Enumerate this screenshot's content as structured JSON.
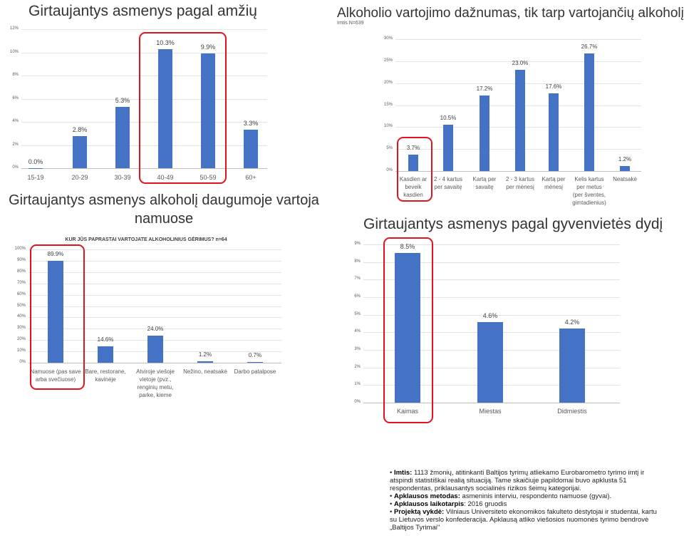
{
  "chart_data": [
    {
      "type": "bar",
      "title": "Girtaujantys asmenys pagal amžių",
      "categories": [
        "15-19",
        "20-29",
        "30-39",
        "40-49",
        "50-59",
        "60+"
      ],
      "values": [
        0.0,
        2.8,
        5.3,
        10.3,
        9.9,
        3.3
      ],
      "value_labels": [
        "0.0%",
        "2.8%",
        "5.3%",
        "10.3%",
        "9.9%",
        "3.3%"
      ],
      "yticks": [
        "0%",
        "2%",
        "4%",
        "6%",
        "8%",
        "10%",
        "12%"
      ],
      "ylim": [
        0,
        12
      ],
      "highlighted": [
        "40-49",
        "50-59"
      ],
      "xlabel": "",
      "ylabel": "",
      "grid": true
    },
    {
      "type": "bar",
      "title": "Alkoholio vartojimo dažnumas, tik tarp vartojančių alkoholį",
      "subtitle": "Imtis N=639",
      "categories": [
        "Kasdien ar\nbeveik\nkasdien",
        "2 - 4 kartus\nper savaitę",
        "Kartą per\nsavaitę",
        "2 - 3 kartus\nper mėnesį",
        "Kartą per\nmėnesį",
        "Kelis kartus\nper metus\n(per šventes,\ngimtadienius)",
        "Neatsakė"
      ],
      "values": [
        3.7,
        10.5,
        17.2,
        23.0,
        17.6,
        26.7,
        1.2
      ],
      "value_labels": [
        "3.7%",
        "10.5%",
        "17.2%",
        "23.0%",
        "17.6%",
        "26.7%",
        "1.2%"
      ],
      "yticks": [
        "0%",
        "5%",
        "10%",
        "15%",
        "20%",
        "25%",
        "30%"
      ],
      "ylim": [
        0,
        30
      ],
      "highlighted": [
        "Kasdien ar\nbeveik\nkasdien"
      ],
      "xlabel": "",
      "ylabel": "",
      "grid": true
    },
    {
      "type": "bar",
      "title": "Girtaujantys asmenys alkoholį daugumoje vartoja namuose",
      "heading_lines": [
        "Girtaujantys asmenys alkoholį daugumoje vartoja",
        "namuose"
      ],
      "subtitle": "KUR JŪS PAPRASTAI VARTOJATE ALKOHOLINIUS GĖRIMUS? n=64",
      "categories": [
        "Namuose (pas save\narba svečiuose)",
        "Bare, restorane,\nkavinėje",
        "Atviroje viešoje\nvietoje (pvz.,\nrenginių metu,\nparke, kieme",
        "Nežino, neatsakė",
        "Darbo patalpose"
      ],
      "values": [
        89.9,
        14.6,
        24.0,
        1.2,
        0.7
      ],
      "value_labels": [
        "89.9%",
        "14.6%",
        "24.0%",
        "1.2%",
        "0.7%"
      ],
      "yticks": [
        "0%",
        "10%",
        "20%",
        "30%",
        "40%",
        "50%",
        "60%",
        "70%",
        "80%",
        "90%",
        "100%"
      ],
      "ylim": [
        0,
        100
      ],
      "highlighted": [
        "Namuose (pas save\narba svečiuose)"
      ],
      "xlabel": "",
      "ylabel": "",
      "grid": true
    },
    {
      "type": "bar",
      "title": "Girtaujantys asmenys pagal gyvenvietės dydį",
      "categories": [
        "Kaimas",
        "Miestas",
        "Didmiestis"
      ],
      "values": [
        8.5,
        4.6,
        4.2
      ],
      "value_labels": [
        "8.5%",
        "4.6%",
        "4.2%"
      ],
      "yticks": [
        "0%",
        "1%",
        "2%",
        "3%",
        "4%",
        "5%",
        "6%",
        "7%",
        "8%",
        "9%"
      ],
      "ylim": [
        0,
        9
      ],
      "highlighted": [
        "Kaimas"
      ],
      "xlabel": "",
      "ylabel": "",
      "grid": true
    }
  ],
  "notes": [
    {
      "label": "Imtis:",
      "text": " 1113 žmonių, atitinkanti Baltijos tyrimų atliekamo Eurobarometro tyrimo imtį ir atspindi statistiškai realią situaciją. Tame skaičiuje papildomai buvo apklusta 51 respondentas, priklausantys socialinės rizikos šeimų kategorijai."
    },
    {
      "label": "Apklausos metodas:",
      "text": " asmeninis interviu, respondento namuose (gyvai)."
    },
    {
      "label": "Apklausos laikotarpis",
      "text": ": 2016 gruodis"
    },
    {
      "label": "Projektą vykdė:",
      "text": " Vilniaus Universiteto ekonomikos fakulteto dėstytojai ir studentai, kartu su Lietuvos verslo konfederacija. Apklausą atliko viešosios nuomonės tyrimo bendrovė „Baltijos Tyrimai\""
    }
  ]
}
